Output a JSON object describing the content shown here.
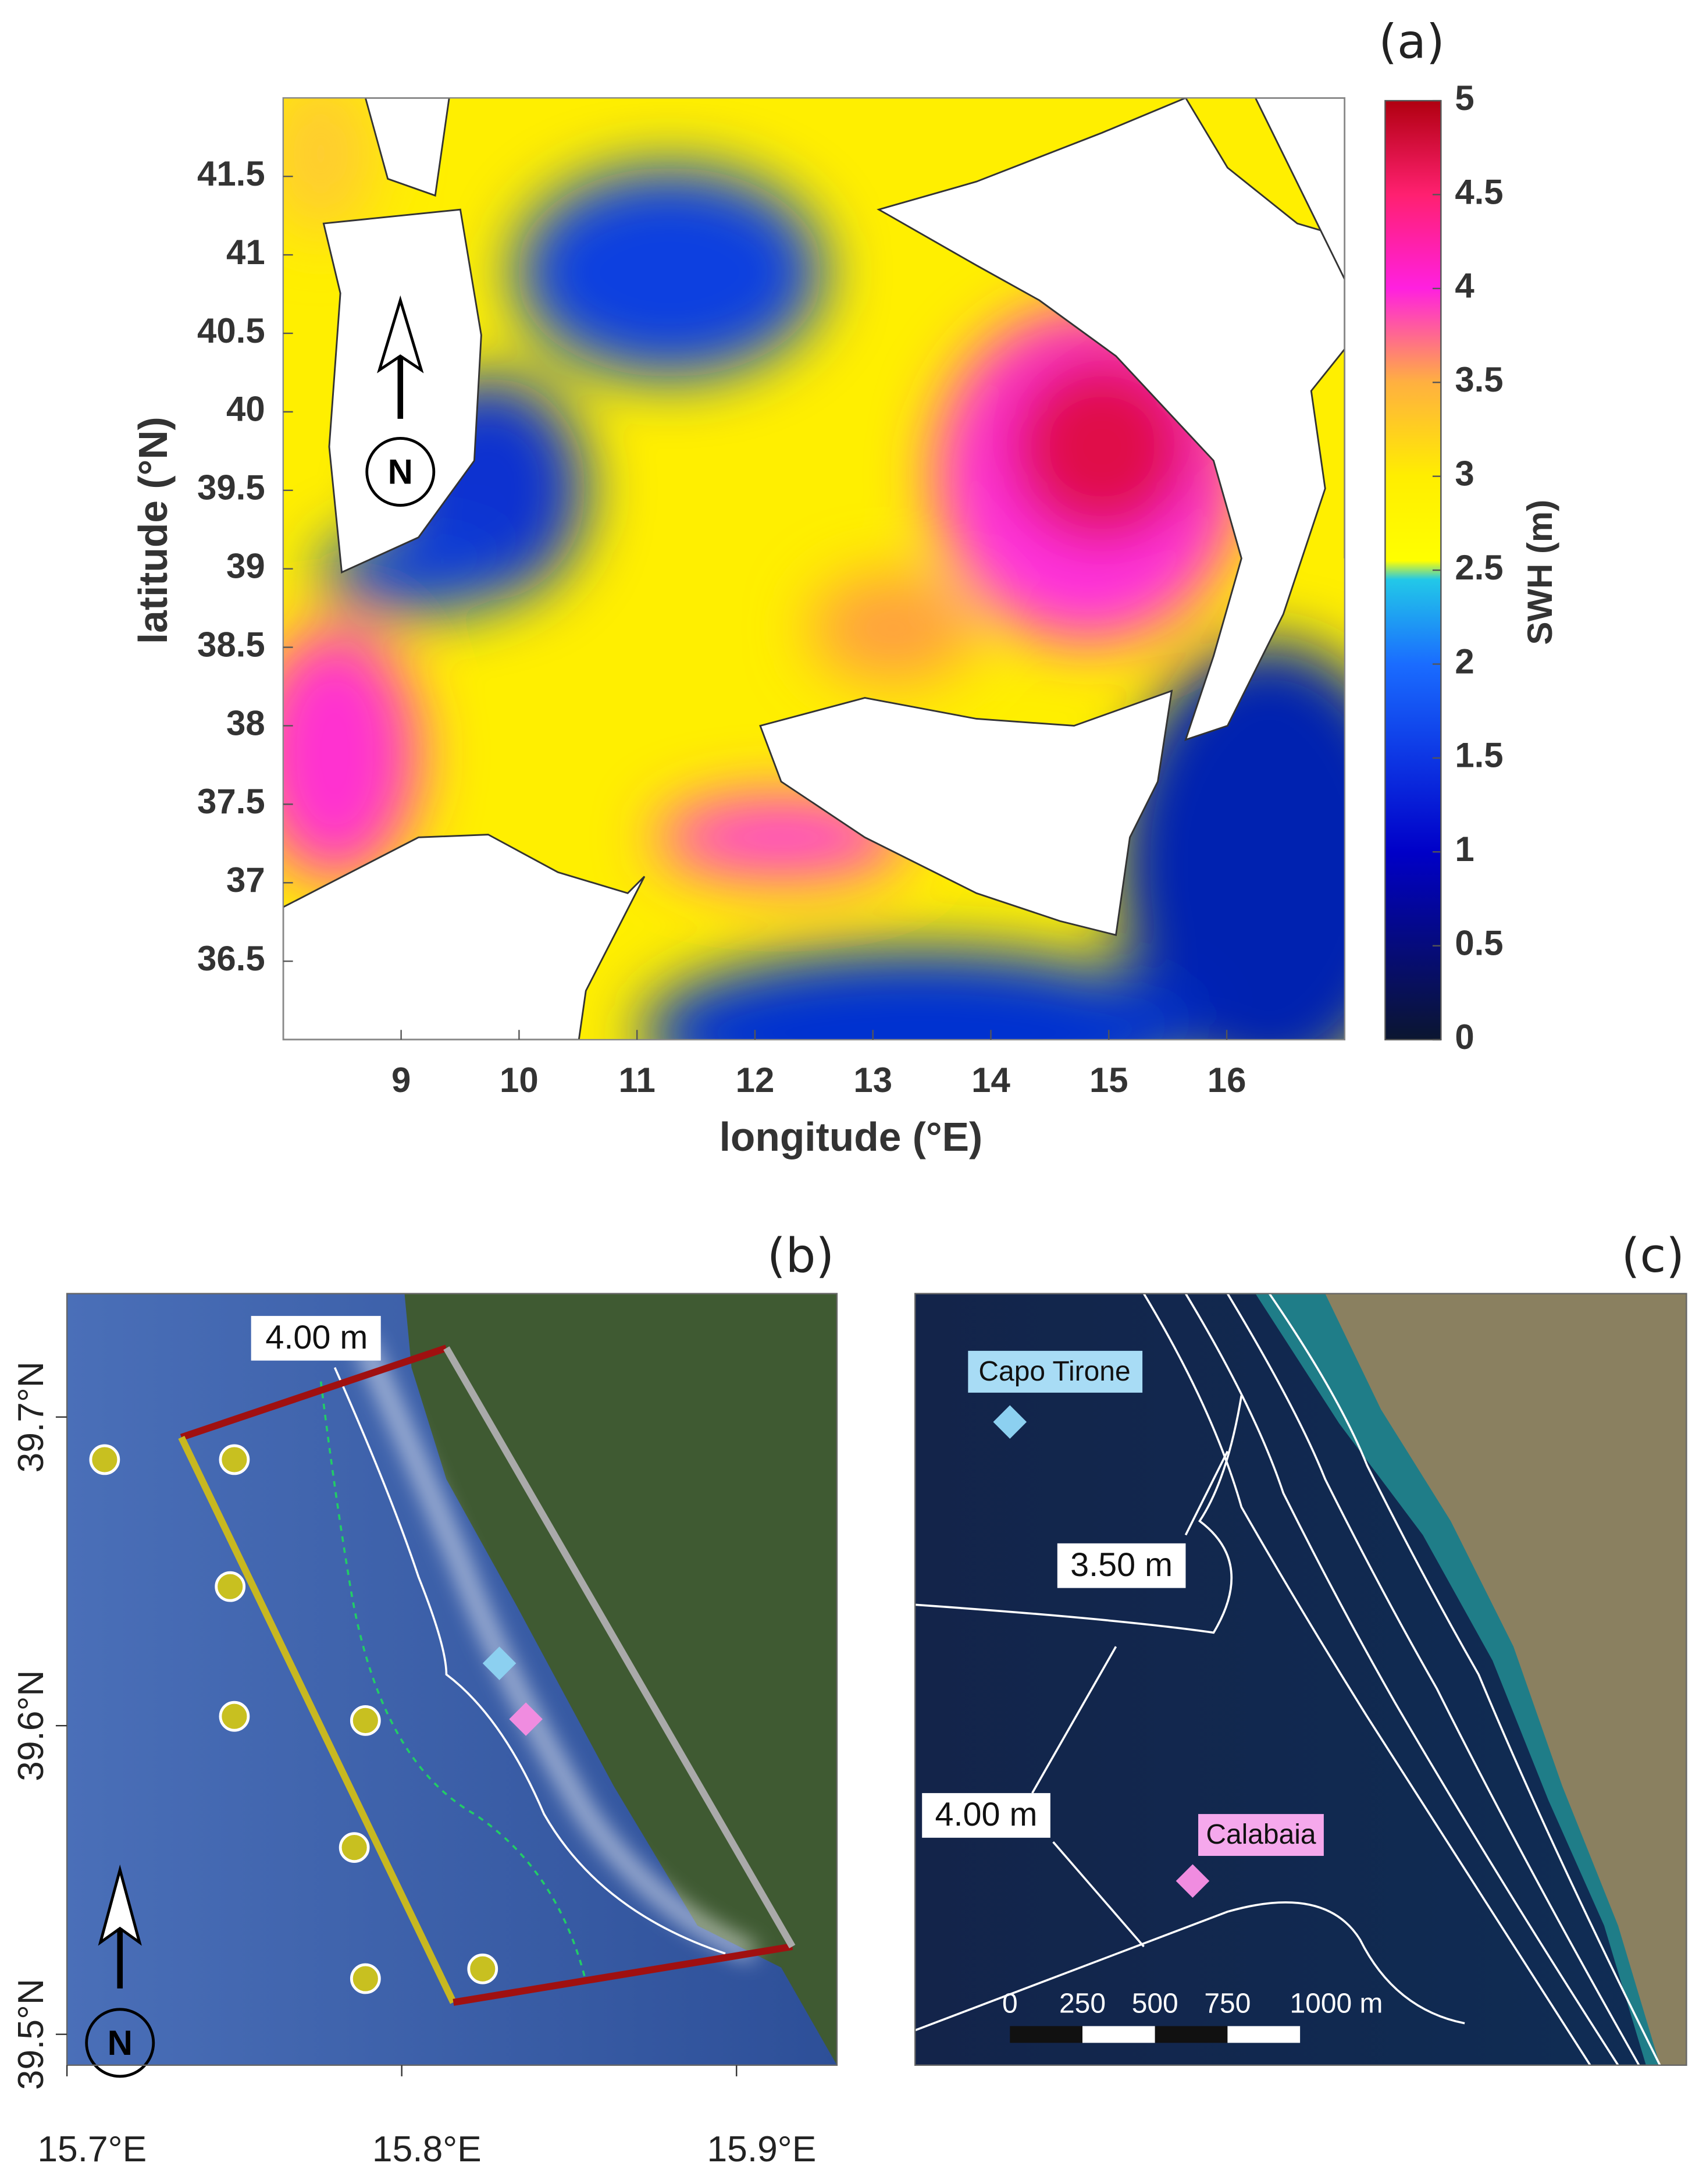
{
  "panels": {
    "a": {
      "label": "(a)",
      "x_axis_label": "longitude (°E)",
      "y_axis_label": "latitude (°N)",
      "xlim": [
        8,
        17
      ],
      "xticks": [
        9,
        10,
        11,
        12,
        13,
        14,
        15,
        16
      ],
      "ylim": [
        36,
        42
      ],
      "yticks": [
        36.5,
        37,
        37.5,
        38,
        38.5,
        39,
        39.5,
        40,
        40.5,
        41,
        41.5
      ],
      "north": "N",
      "colorbar": {
        "label": "SWH (m)",
        "lim": [
          0,
          5
        ],
        "ticks": [
          0,
          0.5,
          1,
          1.5,
          2,
          2.5,
          3,
          3.5,
          4,
          4.5,
          5
        ]
      }
    },
    "b": {
      "label": "(b)",
      "xlim": [
        15.7,
        15.93
      ],
      "xticks": [
        {
          "value": 15.7,
          "label": "15.7°E"
        },
        {
          "value": 15.8,
          "label": "15.8°E"
        },
        {
          "value": 15.9,
          "label": "15.9°E"
        }
      ],
      "ylim": [
        39.49,
        39.74
      ],
      "yticks": [
        {
          "value": 39.5,
          "label": "39.5°N"
        },
        {
          "value": 39.6,
          "label": "39.6°N"
        },
        {
          "value": 39.7,
          "label": "39.7°N"
        }
      ],
      "contour_label": "4.00 m",
      "north": "N"
    },
    "c": {
      "label": "(c)",
      "contour_labels": [
        "3.50 m",
        "4.00 m"
      ],
      "stations": [
        "Capo Tirone",
        "Calabaia"
      ],
      "scale_labels": [
        "0",
        "250",
        "500",
        "750",
        "1000 m"
      ]
    }
  }
}
